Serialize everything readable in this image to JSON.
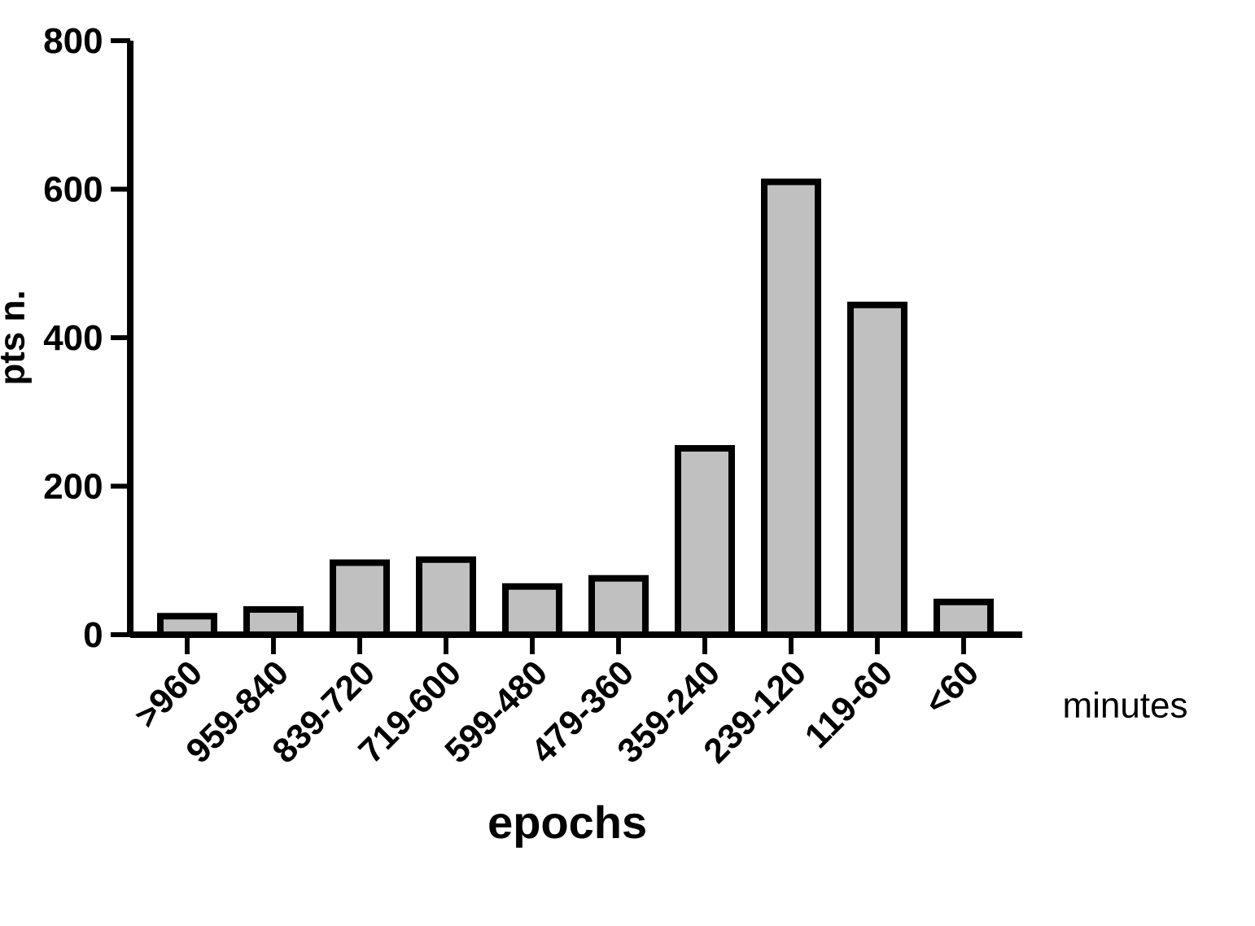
{
  "chart_data": {
    "type": "bar",
    "xlabel": "epochs",
    "ylabel": "pts n.",
    "categories": [
      ">960",
      "959-840",
      "839-720",
      "719-600",
      "599-480",
      "479-360",
      "359-240",
      "239-120",
      "119-60",
      "<60"
    ],
    "values": [
      25,
      34,
      97,
      101,
      65,
      76,
      251,
      610,
      444,
      44
    ],
    "color": "#c0c0c0",
    "ylim": [
      0,
      800
    ],
    "yticks": [
      0,
      200,
      400,
      600,
      800
    ],
    "annotations": [
      "minutes"
    ]
  }
}
